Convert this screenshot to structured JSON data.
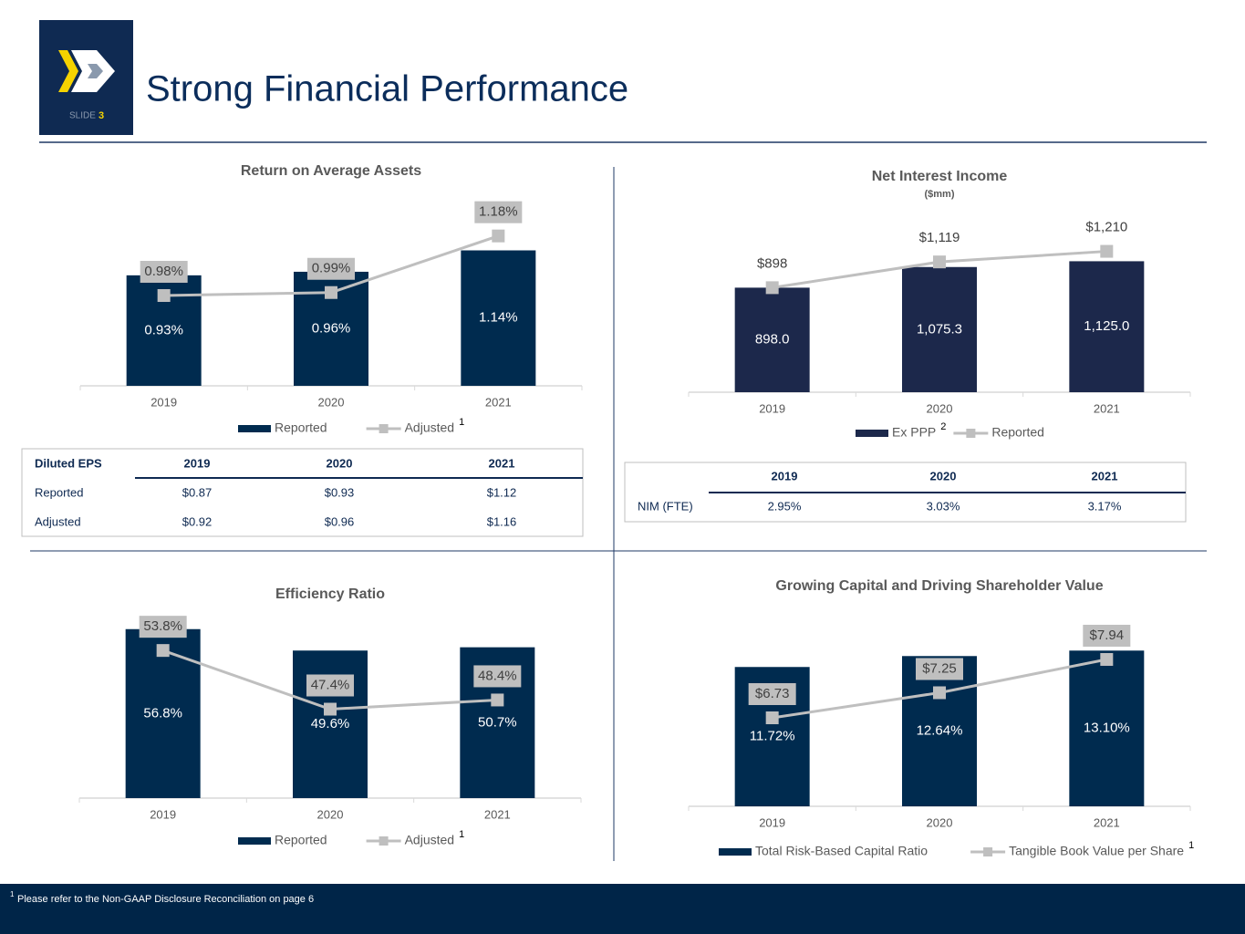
{
  "header": {
    "title": "Strong Financial Performance",
    "slide_label": "SLIDE",
    "slide_number": "3"
  },
  "chart_data": [
    {
      "type": "bar",
      "title": "Return on Average Assets",
      "categories": [
        "2019",
        "2020",
        "2021"
      ],
      "series": [
        {
          "name": "Reported",
          "type": "bar",
          "color": "#002b4f",
          "values": [
            0.93,
            0.96,
            1.14
          ],
          "value_labels": [
            "0.93%",
            "0.96%",
            "1.14%"
          ]
        },
        {
          "name": "Adjusted",
          "type": "line",
          "axis": "y2",
          "color": "#bfbfbf",
          "values": [
            0.98,
            0.99,
            1.18
          ],
          "value_labels": [
            "0.98%",
            "0.99%",
            "1.18%"
          ],
          "label_box": true,
          "note": "1"
        }
      ]
    },
    {
      "type": "bar",
      "title": "Net Interest Income",
      "subtitle": "($mm)",
      "categories": [
        "2019",
        "2020",
        "2021"
      ],
      "series": [
        {
          "name": "Ex PPP",
          "type": "bar",
          "color": "#1c284b",
          "values": [
            898.0,
            1075.3,
            1125.0
          ],
          "value_labels": [
            "898.0",
            "1,075.3",
            "1,125.0"
          ],
          "note": "2"
        },
        {
          "name": "Reported",
          "type": "line",
          "color": "#bfbfbf",
          "values": [
            898,
            1119,
            1210
          ],
          "value_labels": [
            "$898",
            "$1,119",
            "$1,210"
          ],
          "label_box": false
        }
      ]
    },
    {
      "type": "bar",
      "title": "Efficiency Ratio",
      "categories": [
        "2019",
        "2020",
        "2021"
      ],
      "series": [
        {
          "name": "Reported",
          "type": "bar",
          "color": "#002b4f",
          "values": [
            56.8,
            49.6,
            50.7
          ],
          "value_labels": [
            "56.8%",
            "49.6%",
            "50.7%"
          ]
        },
        {
          "name": "Adjusted",
          "type": "line",
          "axis": "y2",
          "color": "#bfbfbf",
          "values": [
            53.8,
            47.4,
            48.4
          ],
          "value_labels": [
            "53.8%",
            "47.4%",
            "48.4%"
          ],
          "label_box": true,
          "note": "1"
        }
      ]
    },
    {
      "type": "bar",
      "title": "Growing Capital and Driving Shareholder Value",
      "categories": [
        "2019",
        "2020",
        "2021"
      ],
      "series": [
        {
          "name": "Total Risk-Based Capital Ratio",
          "type": "bar",
          "color": "#002b4f",
          "values": [
            11.72,
            12.64,
            13.1
          ],
          "value_labels": [
            "11.72%",
            "12.64%",
            "13.10%"
          ]
        },
        {
          "name": "Tangible Book Value per Share",
          "type": "line",
          "axis": "y2",
          "color": "#bfbfbf",
          "values": [
            6.73,
            7.25,
            7.94
          ],
          "value_labels": [
            "$6.73",
            "$7.25",
            "$7.94"
          ],
          "label_box": true,
          "note": "1"
        }
      ]
    }
  ],
  "eps_table": {
    "header": [
      "Diluted EPS",
      "2019",
      "2020",
      "2021"
    ],
    "rows": [
      [
        "Reported",
        "$0.87",
        "$0.93",
        "$1.12"
      ],
      [
        "Adjusted",
        "$0.92",
        "$0.96",
        "$1.16"
      ]
    ]
  },
  "nim_table": {
    "header": [
      "2019",
      "2020",
      "2021"
    ],
    "rows": [
      [
        "NIM (FTE)",
        "2.95%",
        "3.03%",
        "3.17%"
      ]
    ]
  },
  "footnote": {
    "mark": "1",
    "text": "Please refer to the Non-GAAP Disclosure Reconciliation on page 6"
  }
}
